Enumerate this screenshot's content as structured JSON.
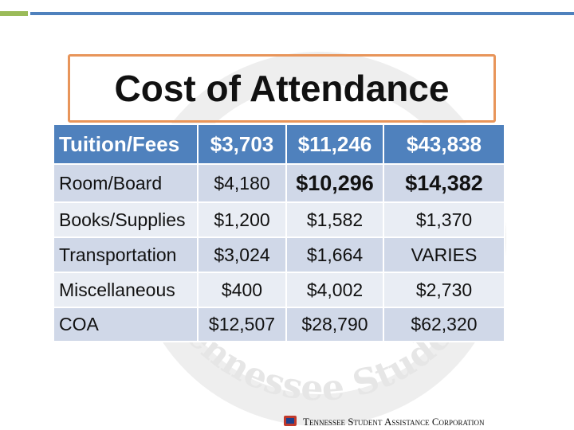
{
  "header": {
    "title": "Cost of Attendance"
  },
  "table": {
    "rows": [
      [
        "Tuition/Fees",
        "$3,703",
        "$11,246",
        "$43,838"
      ],
      [
        "Room/Board",
        "$4,180",
        "$10,296",
        "$14,382"
      ],
      [
        "Books/Supplies",
        "$1,200",
        "$1,582",
        "$1,370"
      ],
      [
        "Transportation",
        "$3,024",
        "$1,664",
        "VARIES"
      ],
      [
        "Miscellaneous",
        "$400",
        "$4,002",
        "$2,730"
      ],
      [
        "COA",
        "$12,507",
        "$28,790",
        "$62,320"
      ]
    ]
  },
  "watermark": "Tennessee Student Assistance",
  "footer": "Tennessee Student Assistance Corporation"
}
